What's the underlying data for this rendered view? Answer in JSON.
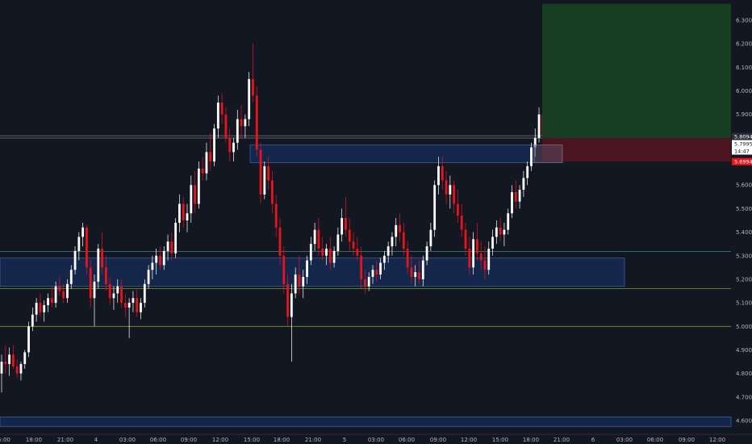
{
  "chart_data": {
    "type": "candlestick",
    "y_ticks": [
      "6.3000",
      "6.2000",
      "6.1000",
      "6.0000",
      "5.9000",
      "5.8000",
      "5.7000",
      "5.6000",
      "5.5000",
      "5.4000",
      "5.3000",
      "5.2000",
      "5.1000",
      "5.0000",
      "4.9000",
      "4.8000",
      "4.7000",
      "4.6000"
    ],
    "y_tick_values": [
      6.3,
      6.2,
      6.1,
      6.0,
      5.9,
      5.8,
      5.7,
      5.6,
      5.5,
      5.4,
      5.3,
      5.2,
      5.1,
      5.0,
      4.9,
      4.8,
      4.7,
      4.6
    ],
    "x_ticks": [
      "5:00",
      "18:00",
      "21:00",
      "4",
      "03:00",
      "06:00",
      "09:00",
      "12:00",
      "15:00",
      "18:00",
      "21:00",
      "5",
      "03:00",
      "06:00",
      "09:00",
      "12:00",
      "15:00",
      "18:00",
      "21:00",
      "6",
      "03:00",
      "06:00",
      "09:00",
      "12:00"
    ],
    "ylim": [
      4.58,
      6.37
    ],
    "price_labels": {
      "upper": "5.8094",
      "current": "5.7995",
      "countdown": "14:47",
      "lower": "5.6994"
    },
    "horizontal_levels": [
      5.8094,
      5.7995,
      5.318,
      5.16,
      5.0
    ],
    "zones": [
      {
        "low": 5.17,
        "high": 5.29
      },
      {
        "low": 5.695,
        "high": 5.77
      },
      {
        "low": 4.575,
        "high": 4.615
      }
    ],
    "position": {
      "target_high": 6.37,
      "entry": 5.7995,
      "stop": 5.6994
    },
    "colors": {
      "background": "#131722",
      "up_candle": "#ffffff",
      "down_candle": "#e8141c",
      "zone_fill": "#15284f",
      "zone_border": "#3a5ea8",
      "profit_zone": "#163d22",
      "loss_zone": "#4a151e",
      "level_teal": "#3b8a85",
      "level_green": "#6d9f2a",
      "level_gray": "#787b86"
    },
    "candles": [
      [
        4.8,
        4.88,
        4.72,
        4.85
      ],
      [
        4.85,
        4.92,
        4.8,
        4.84
      ],
      [
        4.84,
        4.91,
        4.79,
        4.88
      ],
      [
        4.88,
        4.92,
        4.82,
        4.83
      ],
      [
        4.83,
        4.86,
        4.78,
        4.8
      ],
      [
        4.8,
        4.85,
        4.77,
        4.84
      ],
      [
        4.84,
        4.9,
        4.82,
        4.89
      ],
      [
        4.89,
        5.02,
        4.87,
        5.0
      ],
      [
        5.0,
        5.08,
        4.98,
        5.05
      ],
      [
        5.05,
        5.12,
        5.02,
        5.1
      ],
      [
        5.1,
        5.14,
        5.04,
        5.06
      ],
      [
        5.06,
        5.11,
        5.02,
        5.09
      ],
      [
        5.09,
        5.14,
        5.06,
        5.12
      ],
      [
        5.12,
        5.17,
        5.08,
        5.1
      ],
      [
        5.1,
        5.19,
        5.08,
        5.17
      ],
      [
        5.17,
        5.21,
        5.13,
        5.15
      ],
      [
        5.15,
        5.18,
        5.1,
        5.12
      ],
      [
        5.12,
        5.2,
        5.1,
        5.18
      ],
      [
        5.18,
        5.26,
        5.16,
        5.24
      ],
      [
        5.24,
        5.34,
        5.22,
        5.32
      ],
      [
        5.32,
        5.4,
        5.28,
        5.38
      ],
      [
        5.38,
        5.44,
        5.34,
        5.42
      ],
      [
        5.42,
        5.43,
        5.22,
        5.25
      ],
      [
        5.25,
        5.28,
        5.08,
        5.12
      ],
      [
        5.12,
        5.22,
        5.0,
        5.19
      ],
      [
        5.19,
        5.35,
        5.16,
        5.33
      ],
      [
        5.33,
        5.4,
        5.22,
        5.25
      ],
      [
        5.25,
        5.3,
        5.15,
        5.18
      ],
      [
        5.18,
        5.21,
        5.09,
        5.12
      ],
      [
        5.12,
        5.17,
        5.07,
        5.14
      ],
      [
        5.14,
        5.2,
        5.1,
        5.17
      ],
      [
        5.17,
        5.2,
        5.08,
        5.1
      ],
      [
        5.1,
        5.14,
        5.04,
        5.08
      ],
      [
        5.08,
        5.12,
        4.95,
        5.1
      ],
      [
        5.1,
        5.15,
        5.06,
        5.12
      ],
      [
        5.12,
        5.16,
        5.04,
        5.06
      ],
      [
        5.06,
        5.12,
        5.03,
        5.1
      ],
      [
        5.1,
        5.2,
        5.08,
        5.18
      ],
      [
        5.18,
        5.26,
        5.16,
        5.24
      ],
      [
        5.24,
        5.3,
        5.2,
        5.27
      ],
      [
        5.27,
        5.33,
        5.22,
        5.3
      ],
      [
        5.3,
        5.34,
        5.24,
        5.26
      ],
      [
        5.26,
        5.34,
        5.24,
        5.32
      ],
      [
        5.32,
        5.39,
        5.28,
        5.36
      ],
      [
        5.36,
        5.4,
        5.28,
        5.31
      ],
      [
        5.31,
        5.46,
        5.29,
        5.44
      ],
      [
        5.44,
        5.56,
        5.4,
        5.52
      ],
      [
        5.52,
        5.55,
        5.42,
        5.45
      ],
      [
        5.45,
        5.52,
        5.4,
        5.48
      ],
      [
        5.48,
        5.64,
        5.44,
        5.6
      ],
      [
        5.6,
        5.66,
        5.48,
        5.52
      ],
      [
        5.52,
        5.7,
        5.5,
        5.67
      ],
      [
        5.67,
        5.72,
        5.62,
        5.65
      ],
      [
        5.65,
        5.78,
        5.62,
        5.74
      ],
      [
        5.74,
        5.82,
        5.66,
        5.7
      ],
      [
        5.7,
        5.86,
        5.68,
        5.84
      ],
      [
        5.84,
        5.98,
        5.8,
        5.95
      ],
      [
        5.95,
        5.99,
        5.86,
        5.9
      ],
      [
        5.9,
        5.93,
        5.78,
        5.8
      ],
      [
        5.8,
        5.84,
        5.7,
        5.74
      ],
      [
        5.74,
        5.8,
        5.7,
        5.78
      ],
      [
        5.78,
        5.92,
        5.75,
        5.88
      ],
      [
        5.88,
        5.94,
        5.8,
        5.85
      ],
      [
        5.85,
        5.9,
        5.8,
        5.88
      ],
      [
        5.88,
        6.08,
        5.85,
        6.05
      ],
      [
        6.05,
        6.2,
        5.95,
        5.98
      ],
      [
        5.98,
        6.02,
        5.72,
        5.75
      ],
      [
        5.75,
        5.78,
        5.52,
        5.56
      ],
      [
        5.56,
        5.7,
        5.54,
        5.68
      ],
      [
        5.68,
        5.72,
        5.58,
        5.62
      ],
      [
        5.62,
        5.66,
        5.48,
        5.52
      ],
      [
        5.52,
        5.56,
        5.38,
        5.42
      ],
      [
        5.42,
        5.46,
        5.26,
        5.3
      ],
      [
        5.3,
        5.34,
        5.14,
        5.18
      ],
      [
        5.18,
        5.22,
        5.0,
        5.04
      ],
      [
        5.04,
        5.18,
        4.85,
        5.14
      ],
      [
        5.14,
        5.25,
        5.12,
        5.22
      ],
      [
        5.22,
        5.3,
        5.14,
        5.17
      ],
      [
        5.17,
        5.24,
        5.12,
        5.21
      ],
      [
        5.21,
        5.3,
        5.18,
        5.28
      ],
      [
        5.28,
        5.38,
        5.26,
        5.35
      ],
      [
        5.35,
        5.44,
        5.32,
        5.41
      ],
      [
        5.41,
        5.46,
        5.3,
        5.33
      ],
      [
        5.33,
        5.38,
        5.28,
        5.3
      ],
      [
        5.3,
        5.35,
        5.26,
        5.33
      ],
      [
        5.33,
        5.38,
        5.24,
        5.27
      ],
      [
        5.27,
        5.34,
        5.25,
        5.32
      ],
      [
        5.32,
        5.42,
        5.3,
        5.39
      ],
      [
        5.39,
        5.5,
        5.36,
        5.46
      ],
      [
        5.46,
        5.55,
        5.38,
        5.41
      ],
      [
        5.41,
        5.46,
        5.32,
        5.36
      ],
      [
        5.36,
        5.4,
        5.3,
        5.33
      ],
      [
        5.33,
        5.38,
        5.28,
        5.3
      ],
      [
        5.3,
        5.34,
        5.16,
        5.2
      ],
      [
        5.2,
        5.24,
        5.14,
        5.17
      ],
      [
        5.17,
        5.23,
        5.15,
        5.21
      ],
      [
        5.21,
        5.26,
        5.18,
        5.24
      ],
      [
        5.24,
        5.28,
        5.19,
        5.22
      ],
      [
        5.22,
        5.29,
        5.2,
        5.27
      ],
      [
        5.27,
        5.32,
        5.24,
        5.3
      ],
      [
        5.3,
        5.36,
        5.27,
        5.34
      ],
      [
        5.34,
        5.4,
        5.3,
        5.38
      ],
      [
        5.38,
        5.46,
        5.34,
        5.43
      ],
      [
        5.43,
        5.48,
        5.36,
        5.4
      ],
      [
        5.4,
        5.44,
        5.3,
        5.33
      ],
      [
        5.33,
        5.36,
        5.22,
        5.25
      ],
      [
        5.25,
        5.3,
        5.18,
        5.21
      ],
      [
        5.21,
        5.26,
        5.17,
        5.23
      ],
      [
        5.23,
        5.28,
        5.18,
        5.2
      ],
      [
        5.2,
        5.3,
        5.17,
        5.28
      ],
      [
        5.28,
        5.36,
        5.26,
        5.34
      ],
      [
        5.34,
        5.44,
        5.32,
        5.41
      ],
      [
        5.41,
        5.62,
        5.38,
        5.6
      ],
      [
        5.6,
        5.72,
        5.56,
        5.68
      ],
      [
        5.68,
        5.72,
        5.58,
        5.62
      ],
      [
        5.62,
        5.66,
        5.52,
        5.56
      ],
      [
        5.56,
        5.64,
        5.5,
        5.6
      ],
      [
        5.6,
        5.62,
        5.48,
        5.52
      ],
      [
        5.52,
        5.58,
        5.44,
        5.47
      ],
      [
        5.47,
        5.52,
        5.38,
        5.41
      ],
      [
        5.41,
        5.44,
        5.3,
        5.33
      ],
      [
        5.33,
        5.38,
        5.22,
        5.25
      ],
      [
        5.25,
        5.4,
        5.22,
        5.37
      ],
      [
        5.37,
        5.44,
        5.28,
        5.31
      ],
      [
        5.31,
        5.36,
        5.24,
        5.28
      ],
      [
        5.28,
        5.34,
        5.2,
        5.24
      ],
      [
        5.24,
        5.36,
        5.22,
        5.33
      ],
      [
        5.33,
        5.41,
        5.3,
        5.38
      ],
      [
        5.38,
        5.45,
        5.35,
        5.42
      ],
      [
        5.42,
        5.46,
        5.36,
        5.39
      ],
      [
        5.39,
        5.44,
        5.34,
        5.41
      ],
      [
        5.41,
        5.5,
        5.39,
        5.48
      ],
      [
        5.48,
        5.6,
        5.46,
        5.57
      ],
      [
        5.57,
        5.62,
        5.5,
        5.53
      ],
      [
        5.53,
        5.6,
        5.5,
        5.58
      ],
      [
        5.58,
        5.66,
        5.55,
        5.63
      ],
      [
        5.63,
        5.7,
        5.6,
        5.68
      ],
      [
        5.68,
        5.78,
        5.66,
        5.76
      ],
      [
        5.76,
        5.84,
        5.72,
        5.8
      ],
      [
        5.8,
        5.93,
        5.78,
        5.9
      ],
      [
        5.9,
        5.96,
        5.78,
        5.81
      ],
      [
        5.81,
        5.86,
        5.72,
        5.76
      ],
      [
        5.76,
        5.82,
        5.72,
        5.79
      ],
      [
        5.79,
        5.84,
        5.7,
        5.73
      ],
      [
        5.73,
        5.82,
        5.71,
        5.8
      ]
    ]
  }
}
